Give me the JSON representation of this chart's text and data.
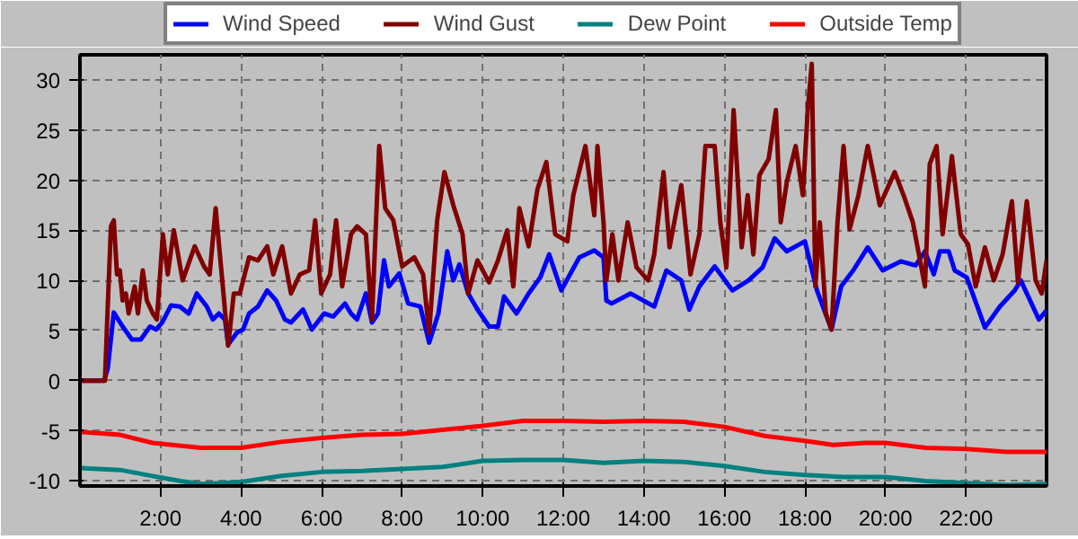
{
  "chart_data": {
    "type": "line",
    "xlim": [
      0,
      24
    ],
    "ylim": [
      -10.5,
      32.5
    ],
    "xticks": [
      {
        "value": 2,
        "label": "2:00"
      },
      {
        "value": 4,
        "label": "4:00"
      },
      {
        "value": 6,
        "label": "6:00"
      },
      {
        "value": 8,
        "label": "8:00"
      },
      {
        "value": 10,
        "label": "10:00"
      },
      {
        "value": 12,
        "label": "12:00"
      },
      {
        "value": 14,
        "label": "14:00"
      },
      {
        "value": 16,
        "label": "16:00"
      },
      {
        "value": 18,
        "label": "18:00"
      },
      {
        "value": 20,
        "label": "20:00"
      },
      {
        "value": 22,
        "label": "22:00"
      }
    ],
    "yticks": [
      -10,
      -5,
      0,
      5,
      10,
      15,
      20,
      25,
      30
    ],
    "grid": true,
    "legend": "top",
    "marker": "none",
    "line_style": "solid",
    "series": [
      {
        "name": "Wind Speed",
        "color": "#0000ff",
        "x": [
          0,
          0.6,
          0.69,
          0.84,
          1.06,
          1.29,
          1.51,
          1.74,
          1.89,
          2.04,
          2.26,
          2.48,
          2.7,
          2.9,
          3.15,
          3.3,
          3.45,
          3.6,
          3.68,
          3.9,
          4.05,
          4.2,
          4.42,
          4.65,
          4.87,
          5.09,
          5.24,
          5.54,
          5.76,
          6.06,
          6.29,
          6.58,
          6.73,
          6.88,
          7.1,
          7.25,
          7.4,
          7.55,
          7.67,
          7.93,
          8.15,
          8.45,
          8.67,
          8.9,
          9.12,
          9.27,
          9.42,
          9.64,
          9.87,
          10.16,
          10.38,
          10.53,
          10.84,
          11.14,
          11.43,
          11.65,
          11.95,
          12.4,
          12.77,
          13.0,
          13.07,
          13.2,
          13.67,
          14.26,
          14.56,
          14.93,
          15.13,
          15.38,
          15.76,
          16.2,
          16.6,
          16.95,
          17.25,
          17.55,
          18.0,
          18.3,
          18.66,
          18.9,
          19.2,
          19.56,
          19.93,
          20.38,
          20.75,
          20.98,
          21.2,
          21.35,
          21.57,
          21.72,
          22.02,
          22.47,
          22.84,
          23.21,
          23.36,
          23.51,
          23.81,
          24.0
        ],
        "values": [
          0,
          0,
          1.2,
          6.8,
          5.4,
          4.1,
          4.1,
          5.4,
          5.1,
          5.8,
          7.5,
          7.4,
          6.7,
          8.7,
          7.4,
          6.1,
          6.7,
          6.1,
          3.6,
          4.8,
          5.1,
          6.7,
          7.4,
          9.0,
          8.0,
          6.1,
          5.8,
          7.1,
          5.1,
          6.7,
          6.4,
          7.7,
          6.7,
          6.1,
          8.7,
          5.8,
          6.7,
          12.0,
          9.4,
          10.7,
          7.7,
          7.4,
          3.8,
          6.7,
          12.9,
          10,
          11.6,
          8.7,
          7.1,
          5.4,
          5.4,
          8.4,
          6.7,
          8.7,
          10.3,
          12.6,
          9.0,
          12.3,
          13,
          12.3,
          8.0,
          7.7,
          8.7,
          7.4,
          11.0,
          10.0,
          7.1,
          9.4,
          11.4,
          9.0,
          10,
          11.3,
          14.2,
          12.9,
          13.9,
          9.0,
          5.1,
          9.4,
          11,
          13.3,
          11,
          11.9,
          11.5,
          12.9,
          10.6,
          12.9,
          12.9,
          11.0,
          10.3,
          5.3,
          7.4,
          9.0,
          10,
          8.7,
          6.1,
          7.0
        ]
      },
      {
        "name": "Wind Gust",
        "color": "#800000",
        "x": [
          0,
          0.62,
          0.69,
          0.77,
          0.84,
          0.92,
          0.99,
          1.06,
          1.14,
          1.21,
          1.36,
          1.44,
          1.56,
          1.66,
          1.81,
          1.91,
          2.06,
          2.18,
          2.33,
          2.55,
          2.85,
          3.08,
          3.22,
          3.37,
          3.52,
          3.68,
          3.82,
          3.97,
          4.2,
          4.42,
          4.65,
          4.8,
          5.02,
          5.24,
          5.46,
          5.69,
          5.84,
          5.99,
          6.21,
          6.36,
          6.51,
          6.73,
          6.88,
          7.1,
          7.25,
          7.43,
          7.58,
          7.78,
          8.0,
          8.3,
          8.52,
          8.67,
          8.87,
          9.05,
          9.27,
          9.5,
          9.64,
          9.87,
          10.16,
          10.38,
          10.61,
          10.76,
          10.91,
          11.14,
          11.36,
          11.58,
          11.8,
          12.1,
          12.25,
          12.55,
          12.77,
          12.85,
          13.0,
          13.07,
          13.22,
          13.37,
          13.6,
          13.82,
          14.11,
          14.26,
          14.49,
          14.64,
          14.93,
          15.16,
          15.38,
          15.53,
          15.76,
          15.9,
          16.05,
          16.23,
          16.43,
          16.58,
          16.72,
          16.87,
          17.1,
          17.28,
          17.4,
          17.55,
          17.77,
          17.95,
          18.07,
          18.17,
          18.26,
          18.37,
          18.52,
          18.66,
          18.81,
          18.96,
          19.11,
          19.33,
          19.56,
          19.86,
          20.23,
          20.45,
          20.68,
          20.98,
          21.1,
          21.27,
          21.42,
          21.65,
          21.87,
          22.05,
          22.24,
          22.47,
          22.69,
          22.91,
          23.14,
          23.29,
          23.51,
          23.73,
          23.88,
          24.0
        ],
        "values": [
          0,
          0,
          7.4,
          15.4,
          16,
          10.6,
          11,
          8,
          8.7,
          6.7,
          9.4,
          6.7,
          11,
          8,
          6.7,
          6.1,
          14.6,
          10.6,
          15,
          10,
          13.4,
          11.4,
          10.6,
          17.2,
          10.6,
          3.5,
          8.7,
          8.7,
          12.3,
          12,
          13.4,
          10.6,
          13.4,
          8.7,
          10.6,
          11,
          16,
          8.7,
          10.6,
          16,
          9.4,
          14.6,
          15.4,
          14.6,
          6.1,
          23.4,
          17.2,
          16,
          11.4,
          12.3,
          10.6,
          4.8,
          16,
          20.8,
          17.5,
          14.6,
          8.7,
          12,
          9.8,
          12,
          15,
          9.4,
          17.2,
          13.4,
          19.1,
          21.8,
          14.6,
          13.9,
          18.5,
          23.4,
          16.5,
          23.4,
          15.8,
          10,
          14.6,
          10,
          15.8,
          11.3,
          10,
          12.6,
          20.8,
          13.3,
          19.5,
          10.6,
          14.6,
          23.4,
          23.4,
          15.8,
          11.3,
          27,
          13.3,
          18.5,
          12.6,
          20.5,
          22.1,
          27,
          15.8,
          19.8,
          23.4,
          18.5,
          27,
          31.6,
          9.4,
          15.8,
          6.7,
          5.1,
          15.8,
          23.4,
          15.1,
          18.5,
          23.4,
          17.5,
          20.8,
          18.5,
          15.8,
          9.4,
          21.6,
          23.4,
          14.6,
          22.4,
          14.6,
          13.6,
          9.4,
          13.3,
          10,
          12.6,
          17.9,
          9.8,
          17.9,
          10,
          8.7,
          12
        ]
      },
      {
        "name": "Dew Point",
        "color": "#008080",
        "x": [
          0,
          1,
          1.8,
          2.5,
          3,
          4,
          5,
          6,
          7,
          8,
          9,
          10,
          11,
          12,
          13,
          14,
          15,
          16,
          17,
          18,
          19,
          20,
          21,
          22,
          23,
          24
        ],
        "values": [
          -8.7,
          -8.9,
          -9.5,
          -10.0,
          -10.3,
          -10.1,
          -9.5,
          -9.1,
          -9.0,
          -8.8,
          -8.6,
          -8.0,
          -7.9,
          -7.9,
          -8.2,
          -8.0,
          -8.1,
          -8.5,
          -9.1,
          -9.4,
          -9.6,
          -9.6,
          -10.0,
          -10.2,
          -10.4,
          -10.3
        ]
      },
      {
        "name": "Outside Temp",
        "color": "#ff0000",
        "x": [
          0,
          1,
          1.8,
          3,
          4,
          5,
          6,
          7,
          8,
          9,
          10,
          11,
          12,
          13,
          14,
          15,
          16,
          17,
          18,
          18.7,
          19.5,
          20,
          21,
          22,
          23,
          24
        ],
        "values": [
          -5.1,
          -5.4,
          -6.2,
          -6.7,
          -6.7,
          -6.1,
          -5.7,
          -5.4,
          -5.3,
          -4.9,
          -4.5,
          -4.0,
          -4.0,
          -4.1,
          -4.0,
          -4.1,
          -4.6,
          -5.5,
          -6.0,
          -6.4,
          -6.2,
          -6.2,
          -6.7,
          -6.8,
          -7.1,
          -7.1
        ]
      }
    ]
  }
}
